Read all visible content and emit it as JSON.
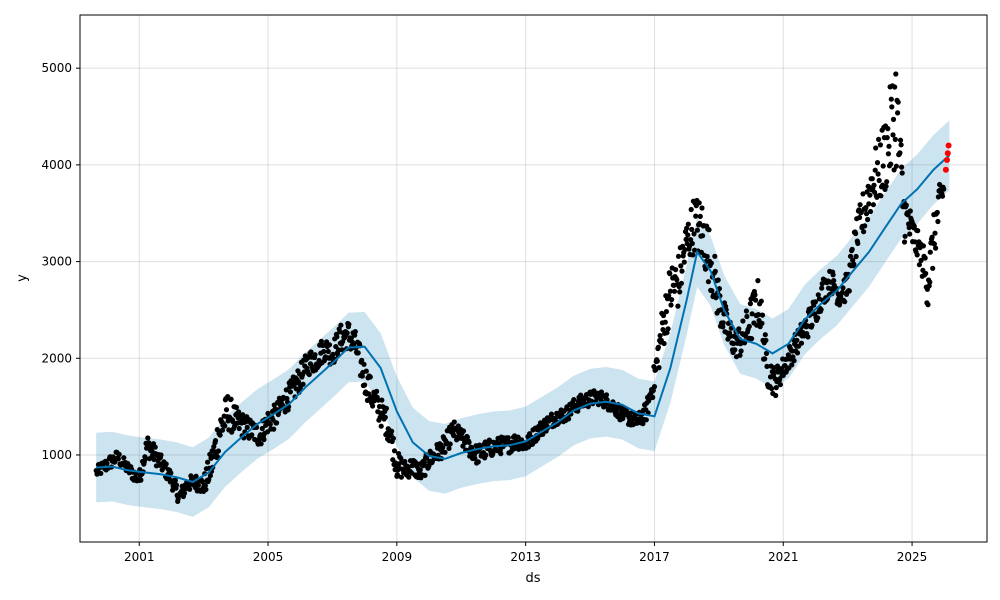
{
  "chart_data": {
    "type": "line",
    "xlabel": "ds",
    "ylabel": "y",
    "x_range": [
      "1999-03-01",
      "2027-05-01"
    ],
    "y_range": [
      100,
      5550
    ],
    "x_ticks": [
      {
        "date": "2001-01-01",
        "label": "2001"
      },
      {
        "date": "2005-01-01",
        "label": "2005"
      },
      {
        "date": "2009-01-01",
        "label": "2009"
      },
      {
        "date": "2013-01-01",
        "label": "2013"
      },
      {
        "date": "2017-01-01",
        "label": "2017"
      },
      {
        "date": "2021-01-01",
        "label": "2021"
      },
      {
        "date": "2025-01-01",
        "label": "2025"
      }
    ],
    "y_ticks": [
      {
        "value": 1000,
        "label": "1000"
      },
      {
        "value": 2000,
        "label": "2000"
      },
      {
        "value": 3000,
        "label": "3000"
      },
      {
        "value": 4000,
        "label": "4000"
      },
      {
        "value": 5000,
        "label": "5000"
      }
    ],
    "grid": true,
    "colors": {
      "observed": "#000000",
      "forecast": "#0072B2",
      "interval": "#0072B2",
      "highlight": "#ff0000"
    },
    "forecast": {
      "x": [
        "1999-09-01",
        "2000-03-01",
        "2000-09-01",
        "2001-03-01",
        "2001-09-01",
        "2002-03-01",
        "2002-09-01",
        "2003-03-01",
        "2003-09-01",
        "2004-03-01",
        "2004-09-01",
        "2005-03-01",
        "2005-09-01",
        "2006-03-01",
        "2006-09-01",
        "2007-03-01",
        "2007-07-01",
        "2008-01-01",
        "2008-07-01",
        "2009-01-01",
        "2009-07-01",
        "2010-01-01",
        "2010-07-01",
        "2011-01-01",
        "2011-07-01",
        "2012-01-01",
        "2012-07-01",
        "2013-01-01",
        "2013-07-01",
        "2014-01-01",
        "2014-07-01",
        "2015-01-01",
        "2015-07-01",
        "2016-01-01",
        "2016-07-01",
        "2017-01-01",
        "2017-07-01",
        "2018-01-01",
        "2018-05-01",
        "2018-10-01",
        "2019-03-01",
        "2019-09-01",
        "2020-03-01",
        "2020-09-01",
        "2021-03-01",
        "2021-09-01",
        "2022-03-01",
        "2022-09-01",
        "2023-03-01",
        "2023-09-01",
        "2024-03-01",
        "2024-09-01",
        "2025-03-01",
        "2025-09-01",
        "2026-03-01"
      ],
      "yhat": [
        870,
        880,
        840,
        820,
        800,
        770,
        720,
        820,
        1030,
        1180,
        1320,
        1420,
        1530,
        1700,
        1850,
        2000,
        2110,
        2120,
        1900,
        1450,
        1130,
        990,
        960,
        1020,
        1060,
        1090,
        1100,
        1140,
        1240,
        1340,
        1460,
        1530,
        1550,
        1520,
        1430,
        1400,
        1900,
        2600,
        3100,
        2900,
        2500,
        2200,
        2150,
        2050,
        2150,
        2400,
        2560,
        2700,
        2900,
        3100,
        3350,
        3600,
        3750,
        3950,
        4100
      ],
      "band_half_width": 360
    },
    "observed_series": {
      "x": [
        "1999-09-01",
        "2000-01-01",
        "2000-05-01",
        "2000-09-01",
        "2001-01-01",
        "2001-04-01",
        "2001-07-01",
        "2001-10-01",
        "2002-01-01",
        "2002-04-01",
        "2002-07-01",
        "2002-10-01",
        "2003-01-01",
        "2003-04-01",
        "2003-07-01",
        "2003-10-01",
        "2004-01-01",
        "2004-04-01",
        "2004-07-01",
        "2004-10-01",
        "2005-01-01",
        "2005-04-01",
        "2005-07-01",
        "2005-10-01",
        "2006-01-01",
        "2006-04-01",
        "2006-07-01",
        "2006-10-01",
        "2007-01-01",
        "2007-04-01",
        "2007-07-01",
        "2007-10-01",
        "2008-01-01",
        "2008-04-01",
        "2008-07-01",
        "2008-10-01",
        "2009-01-01",
        "2009-04-01",
        "2009-07-01",
        "2009-10-01",
        "2010-01-01",
        "2010-04-01",
        "2010-07-01",
        "2010-10-01",
        "2011-01-01",
        "2011-04-01",
        "2011-07-01",
        "2011-10-01",
        "2012-01-01",
        "2012-04-01",
        "2012-07-01",
        "2012-10-01",
        "2013-01-01",
        "2013-04-01",
        "2013-07-01",
        "2013-10-01",
        "2014-01-01",
        "2014-04-01",
        "2014-07-01",
        "2014-10-01",
        "2015-01-01",
        "2015-04-01",
        "2015-07-01",
        "2015-10-01",
        "2016-01-01",
        "2016-04-01",
        "2016-07-01",
        "2016-10-01",
        "2017-01-01",
        "2017-04-01",
        "2017-07-01",
        "2017-10-01",
        "2018-01-01",
        "2018-04-01",
        "2018-07-01",
        "2018-10-01",
        "2019-01-01",
        "2019-04-01",
        "2019-07-01",
        "2019-10-01",
        "2020-01-01",
        "2020-04-01",
        "2020-07-01",
        "2020-10-01",
        "2021-01-01",
        "2021-04-01",
        "2021-07-01",
        "2021-10-01",
        "2022-01-01",
        "2022-04-01",
        "2022-07-01",
        "2022-10-01",
        "2023-01-01",
        "2023-04-01",
        "2023-07-01",
        "2023-10-01",
        "2024-01-01",
        "2024-04-01",
        "2024-07-01",
        "2024-10-01",
        "2025-01-01",
        "2025-04-01",
        "2025-07-01",
        "2025-10-01",
        "2026-01-01"
      ],
      "y": [
        820,
        900,
        980,
        850,
        750,
        1100,
        1000,
        880,
        750,
        560,
        700,
        720,
        680,
        900,
        1250,
        1450,
        1350,
        1300,
        1250,
        1200,
        1350,
        1400,
        1550,
        1650,
        1800,
        1950,
        2000,
        2100,
        2050,
        2200,
        2250,
        2100,
        1800,
        1600,
        1450,
        1300,
        900,
        850,
        880,
        820,
        950,
        1020,
        1100,
        1250,
        1180,
        1080,
        1000,
        1050,
        1080,
        1100,
        1110,
        1150,
        1100,
        1200,
        1280,
        1350,
        1400,
        1420,
        1500,
        1550,
        1580,
        1600,
        1560,
        1500,
        1420,
        1380,
        1350,
        1450,
        1800,
        2300,
        2700,
        2800,
        3200,
        3400,
        3300,
        3000,
        2600,
        2300,
        2150,
        2200,
        2400,
        2600,
        1900,
        1750,
        1900,
        2050,
        2200,
        2350,
        2500,
        2700,
        2800,
        2650,
        2750,
        3200,
        3500,
        3800,
        3950,
        4200,
        4600,
        3500,
        3300,
        3100,
        2800,
        3400,
        3800
      ],
      "spread": [
        60,
        80,
        70,
        70,
        80,
        120,
        100,
        80,
        90,
        80,
        80,
        80,
        100,
        180,
        220,
        200,
        150,
        130,
        120,
        120,
        130,
        130,
        130,
        140,
        140,
        130,
        140,
        130,
        130,
        150,
        150,
        170,
        170,
        160,
        150,
        160,
        140,
        100,
        100,
        100,
        100,
        100,
        110,
        110,
        100,
        100,
        100,
        100,
        90,
        90,
        90,
        90,
        80,
        80,
        80,
        80,
        80,
        80,
        80,
        80,
        80,
        80,
        80,
        80,
        80,
        80,
        80,
        100,
        150,
        250,
        300,
        300,
        250,
        300,
        350,
        300,
        250,
        200,
        150,
        200,
        250,
        250,
        200,
        150,
        120,
        130,
        130,
        150,
        150,
        150,
        130,
        130,
        150,
        200,
        250,
        300,
        350,
        450,
        600,
        300,
        200,
        150,
        300,
        250,
        200
      ]
    },
    "highlight_series": {
      "x": [
        "2026-01-20",
        "2026-02-01",
        "2026-02-10",
        "2026-02-20"
      ],
      "y": [
        3950,
        4050,
        4120,
        4200
      ]
    }
  }
}
